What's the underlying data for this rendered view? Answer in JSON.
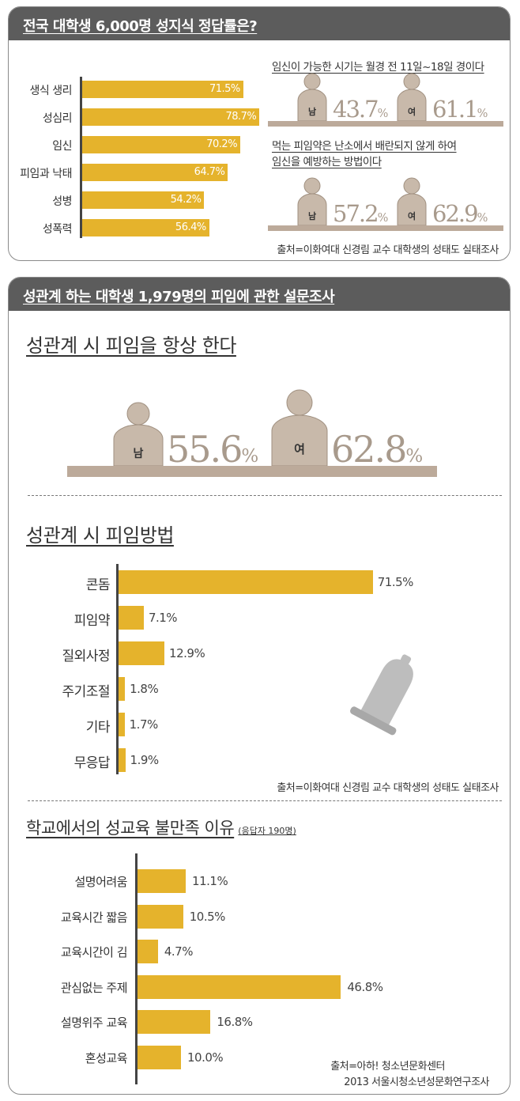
{
  "panel1": {
    "header": "전국 대학생 6,000명 성지식 정답률은?",
    "bars": [
      {
        "label": "생식 생리",
        "value": 71.5,
        "display": "71.5%"
      },
      {
        "label": "성심리",
        "value": 78.7,
        "display": "78.7%"
      },
      {
        "label": "임신",
        "value": 70.2,
        "display": "70.2%"
      },
      {
        "label": "피임과 낙태",
        "value": 64.7,
        "display": "64.7%"
      },
      {
        "label": "성병",
        "value": 54.2,
        "display": "54.2%"
      },
      {
        "label": "성폭력",
        "value": 56.4,
        "display": "56.4%"
      }
    ],
    "q1": {
      "caption": "임신이 가능한 시기는 월경 전 11일~18일 경이다",
      "male_label": "남",
      "male_pct": "43.7",
      "female_label": "여",
      "female_pct": "61.1",
      "pct_sign": "%"
    },
    "q2": {
      "caption_line1": "먹는 피임약은 난소에서 배란되지 않게 하여",
      "caption_line2": "임신을 예방하는 방법이다",
      "male_label": "남",
      "male_pct": "57.2",
      "female_label": "여",
      "female_pct": "62.9",
      "pct_sign": "%"
    },
    "source": "출처=이화여대 신경림 교수 대학생의 성태도 실태조사"
  },
  "panel2": {
    "header": "성관계 하는 대학생 1,979명의 피임에 관한 설문조사",
    "section1": {
      "title": "성관계 시 피임을 항상 한다",
      "male_label": "남",
      "male_pct": "55.6",
      "female_label": "여",
      "female_pct": "62.8",
      "pct_sign": "%"
    },
    "section2": {
      "title": "성관계 시 피임방법",
      "bars": [
        {
          "label": "콘돔",
          "value": 71.5,
          "display": "71.5%"
        },
        {
          "label": "피임약",
          "value": 7.1,
          "display": "7.1%"
        },
        {
          "label": "질외사정",
          "value": 12.9,
          "display": "12.9%"
        },
        {
          "label": "주기조절",
          "value": 1.8,
          "display": "1.8%"
        },
        {
          "label": "기타",
          "value": 1.7,
          "display": "1.7%"
        },
        {
          "label": "무응답",
          "value": 1.9,
          "display": "1.9%"
        }
      ],
      "source": "출처=이화여대 신경림 교수 대학생의 성태도 실태조사"
    },
    "section3": {
      "title": "학교에서의 성교육 불만족 이유",
      "note": "(응답자 190명)",
      "bars": [
        {
          "label": "설명어려움",
          "value": 11.1,
          "display": "11.1%"
        },
        {
          "label": "교육시간 짧음",
          "value": 10.5,
          "display": "10.5%"
        },
        {
          "label": "교육시간이 김",
          "value": 4.7,
          "display": "4.7%"
        },
        {
          "label": "관심없는 주제",
          "value": 46.8,
          "display": "46.8%"
        },
        {
          "label": "설명위주 교육",
          "value": 16.8,
          "display": "16.8%"
        },
        {
          "label": "혼성교육",
          "value": 10.0,
          "display": "10.0%"
        }
      ],
      "source_line1": "출처=아하! 청소년문화센터",
      "source_line2": "2013 서울시청소년성문화연구조사"
    }
  },
  "colors": {
    "bar": "#e5b32c",
    "person": "#c8b9aa",
    "header": "#5c5c5c",
    "ground": "#bcaa9a",
    "pct_text": "#a89a8c"
  },
  "chart_data": [
    {
      "type": "bar",
      "title": "전국 대학생 6,000명 성지식 정답률은?",
      "categories": [
        "생식 생리",
        "성심리",
        "임신",
        "피임과 낙태",
        "성병",
        "성폭력"
      ],
      "values": [
        71.5,
        78.7,
        70.2,
        64.7,
        54.2,
        56.4
      ]
    },
    {
      "type": "bar",
      "title": "임신이 가능한 시기는 월경 전 11일~18일 경이다",
      "categories": [
        "남",
        "여"
      ],
      "values": [
        43.7,
        61.1
      ]
    },
    {
      "type": "bar",
      "title": "먹는 피임약은 난소에서 배란되지 않게 하여 임신을 예방하는 방법이다",
      "categories": [
        "남",
        "여"
      ],
      "values": [
        57.2,
        62.9
      ]
    },
    {
      "type": "bar",
      "title": "성관계 시 피임을 항상 한다",
      "categories": [
        "남",
        "여"
      ],
      "values": [
        55.6,
        62.8
      ]
    },
    {
      "type": "bar",
      "title": "성관계 시 피임방법",
      "categories": [
        "콘돔",
        "피임약",
        "질외사정",
        "주기조절",
        "기타",
        "무응답"
      ],
      "values": [
        71.5,
        7.1,
        12.9,
        1.8,
        1.7,
        1.9
      ]
    },
    {
      "type": "bar",
      "title": "학교에서의 성교육 불만족 이유",
      "categories": [
        "설명어려움",
        "교육시간 짧음",
        "교육시간이 김",
        "관심없는 주제",
        "설명위주 교육",
        "혼성교육"
      ],
      "values": [
        11.1,
        10.5,
        4.7,
        46.8,
        16.8,
        10.0
      ]
    }
  ]
}
